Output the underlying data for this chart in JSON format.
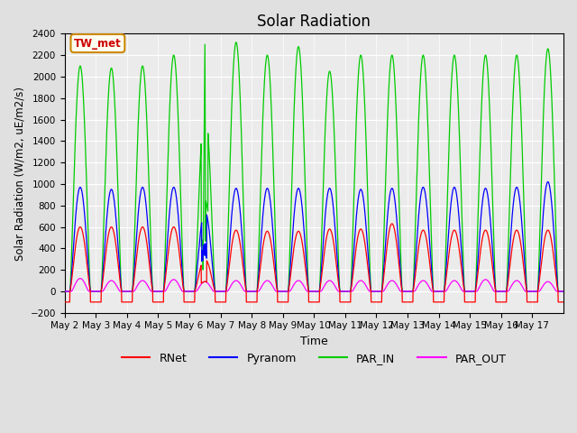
{
  "title": "Solar Radiation",
  "ylabel": "Solar Radiation (W/m2, uE/m2/s)",
  "xlabel": "Time",
  "ylim": [
    -200,
    2400
  ],
  "yticks": [
    -200,
    0,
    200,
    400,
    600,
    800,
    1000,
    1200,
    1400,
    1600,
    1800,
    2000,
    2200,
    2400
  ],
  "x_labels": [
    "May 2",
    "May 3",
    "May 4",
    "May 5",
    "May 6",
    "May 7",
    "May 8",
    "May 9",
    "May 10",
    "May 11",
    "May 12",
    "May 13",
    "May 14",
    "May 15",
    "May 16",
    "May 17"
  ],
  "station_label": "TW_met",
  "legend_entries": [
    "RNet",
    "Pyranom",
    "PAR_IN",
    "PAR_OUT"
  ],
  "legend_colors": [
    "#ff0000",
    "#0000ff",
    "#00cc00",
    "#ff00ff"
  ],
  "bg_color": "#e0e0e0",
  "plot_bg_color": "#ebebeb",
  "rnet_peak": [
    600,
    600,
    600,
    600,
    300,
    570,
    560,
    560,
    580,
    580,
    630,
    570,
    570,
    570,
    570,
    570
  ],
  "pyranom_peak": [
    970,
    950,
    970,
    970,
    750,
    960,
    960,
    960,
    960,
    950,
    960,
    970,
    970,
    960,
    970,
    1020
  ],
  "par_in_peak": [
    2100,
    2080,
    2100,
    2200,
    1700,
    2320,
    2200,
    2280,
    2050,
    2200,
    2200,
    2200,
    2200,
    2200,
    2200,
    2260
  ],
  "par_out_peak": [
    120,
    100,
    100,
    110,
    90,
    100,
    100,
    100,
    100,
    100,
    100,
    100,
    100,
    110,
    100,
    90
  ],
  "rnet_night": -100,
  "num_days": 16
}
